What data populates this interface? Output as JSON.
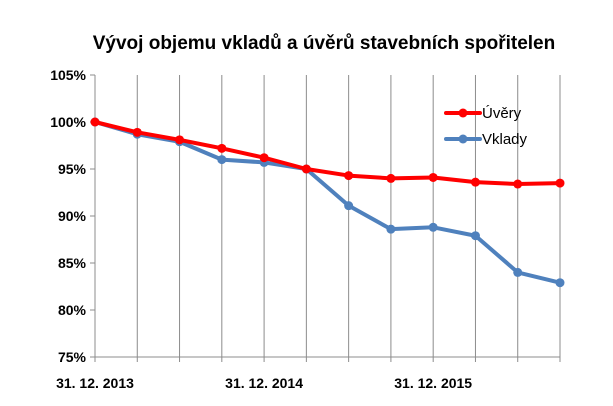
{
  "chart_data": {
    "type": "line",
    "title": "Vývoj objemu vkladů a úvěrů stavebních spořitelen",
    "xlabel": "",
    "ylabel": "",
    "ylim": [
      75,
      105
    ],
    "y_ticks": [
      "75%",
      "80%",
      "85%",
      "90%",
      "95%",
      "100%",
      "105%"
    ],
    "y_tick_values": [
      75,
      80,
      85,
      90,
      95,
      100,
      105
    ],
    "x_point_count": 12,
    "x_tick_labels": [
      {
        "index": 0,
        "label": "31. 12. 2013"
      },
      {
        "index": 4,
        "label": "31. 12. 2014"
      },
      {
        "index": 8,
        "label": "31. 12. 2015"
      }
    ],
    "grid": {
      "vertical": true,
      "horizontal": false
    },
    "legend_position": "top-right",
    "series": [
      {
        "name": "Úvěry",
        "color": "#ff0000",
        "values": [
          100.0,
          98.9,
          98.1,
          97.2,
          96.2,
          95.0,
          94.3,
          94.0,
          94.1,
          93.6,
          93.4,
          93.5
        ]
      },
      {
        "name": "Vklady",
        "color": "#4f81bd",
        "values": [
          100.0,
          98.7,
          97.9,
          96.0,
          95.7,
          95.0,
          91.1,
          88.6,
          88.8,
          87.9,
          84.0,
          82.9
        ]
      }
    ]
  }
}
